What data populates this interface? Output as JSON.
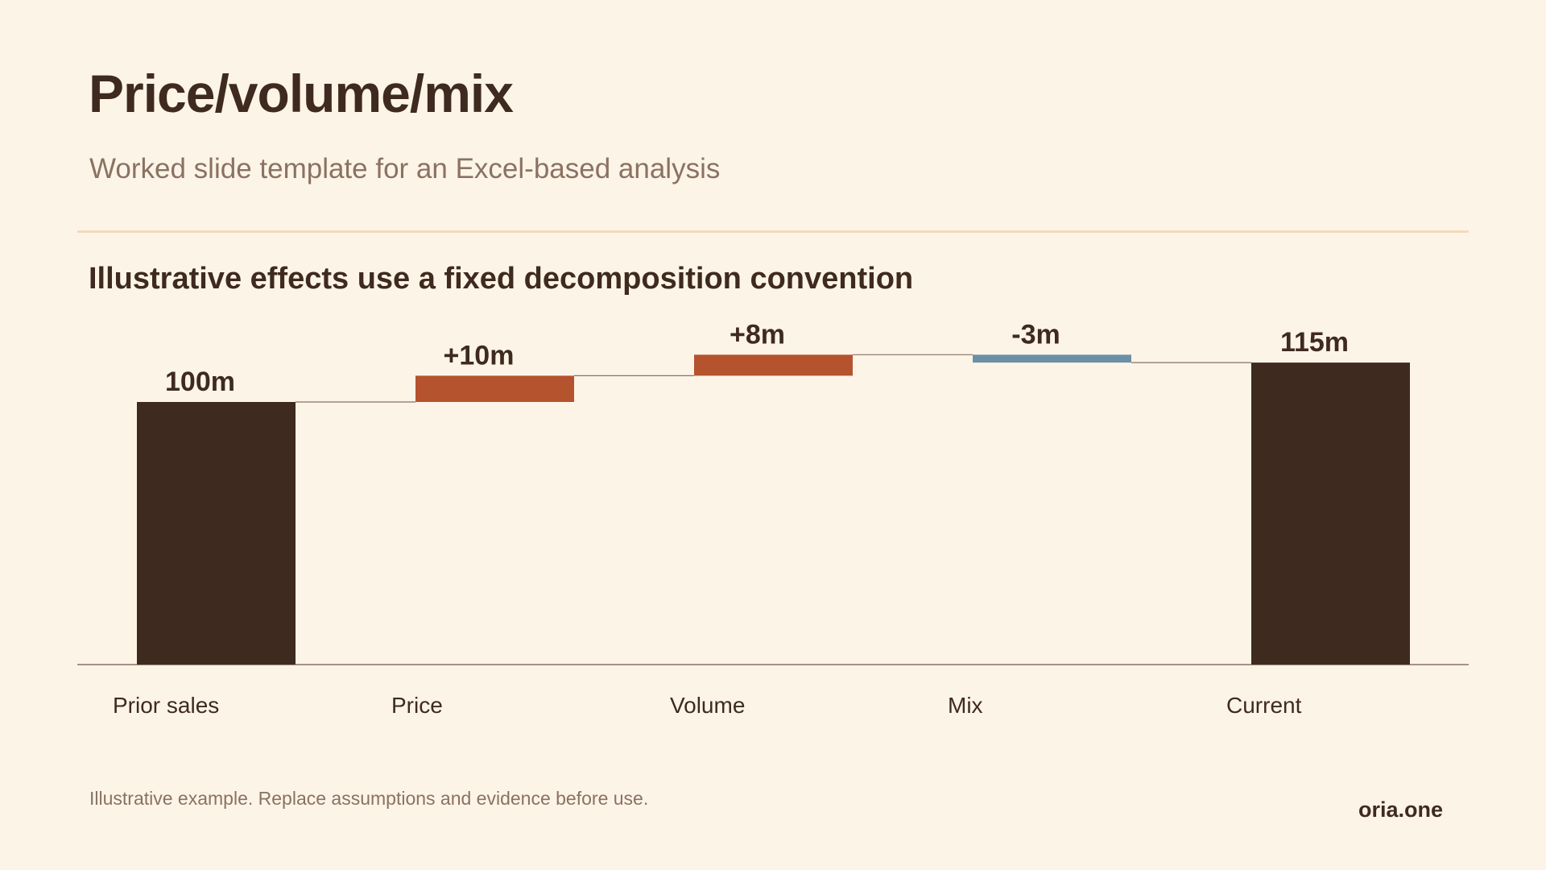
{
  "slide": {
    "title": "Price/volume/mix",
    "subtitle": "Worked slide template for an Excel-based analysis",
    "headline": "Illustrative effects use a fixed decomposition convention",
    "footnote": "Illustrative example. Replace assumptions and evidence before use.",
    "brand": "oria.one"
  },
  "colors": {
    "background": "#fdf4e8",
    "total_bar": "#3f2a1f",
    "increase_bar": "#b5532f",
    "decrease_bar": "#6b8fa6",
    "connector": "#8a7262",
    "axis": "#8a7262",
    "divider": "#f7d9b8"
  },
  "chart_data": {
    "type": "bar",
    "subtype": "waterfall",
    "categories": [
      "Prior sales",
      "Price",
      "Volume",
      "Mix",
      "Current"
    ],
    "values": [
      100,
      10,
      8,
      -3,
      115
    ],
    "kinds": [
      "total",
      "delta",
      "delta",
      "delta",
      "total"
    ],
    "labels": [
      "100m",
      "+10m",
      "+8m",
      "-3m",
      "115m"
    ],
    "unit": "m",
    "ylim": [
      0,
      115
    ],
    "grid": false,
    "legend": "none"
  }
}
